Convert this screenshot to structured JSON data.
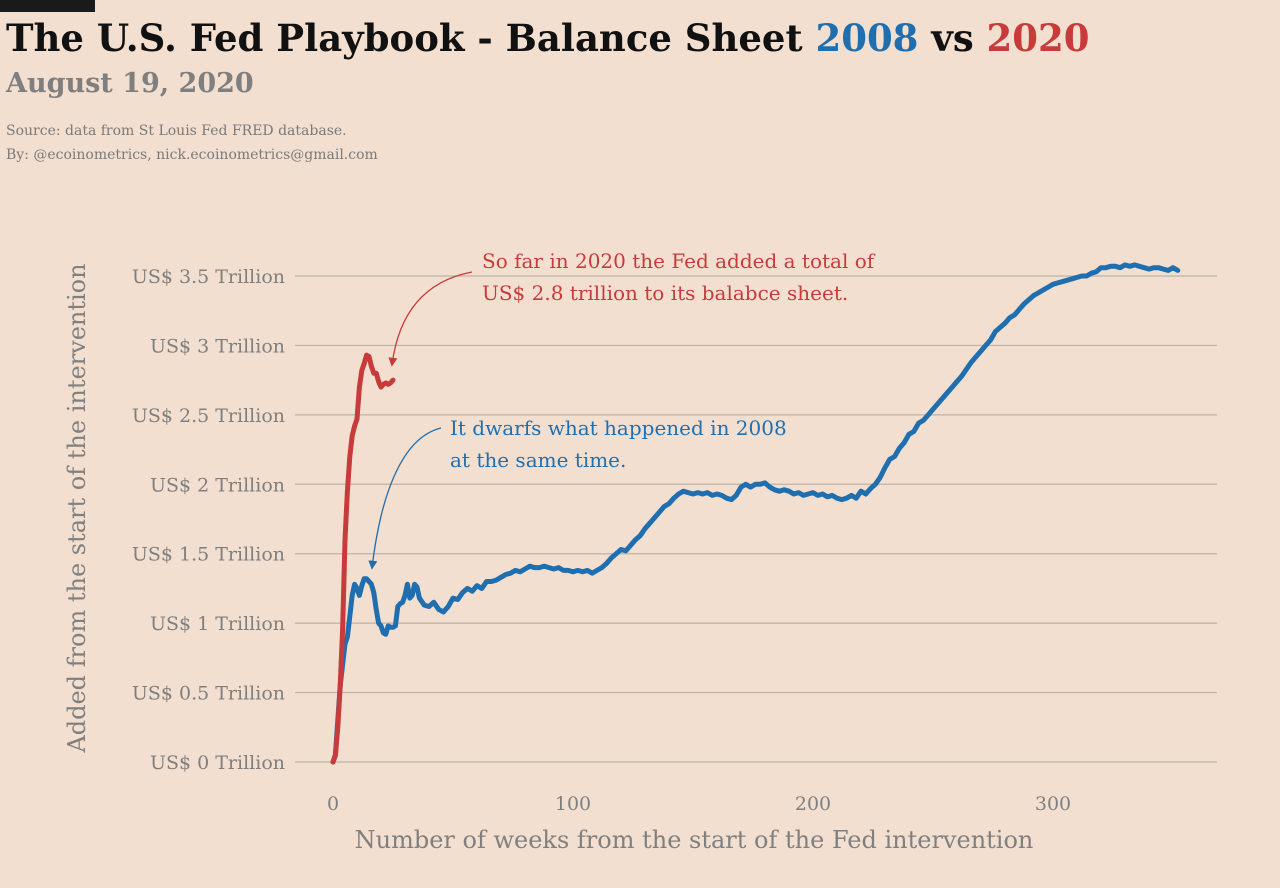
{
  "header": {
    "title_prefix": "The U.S. Fed Playbook - Balance Sheet ",
    "title_2008": "2008",
    "title_vs": " vs ",
    "title_2020": "2020",
    "date": "August 19, 2020",
    "source": "Source: data from  St Louis Fed FRED database.",
    "byline": "By: @ecoinometrics, nick.ecoinometrics@gmail.com"
  },
  "colors": {
    "background": "#f2dfd0",
    "series_2008": "#1f6fb0",
    "series_2020": "#c73b3b",
    "grid": "#bdb3ab"
  },
  "chart_data": {
    "type": "line",
    "title": "The U.S. Fed Playbook - Balance Sheet 2008 vs 2020",
    "xlabel": "Number of weeks from the start of the Fed intervention",
    "ylabel": "Added from the start of the intervention",
    "xlim": [
      -12,
      380
    ],
    "ylim": [
      0,
      3.5
    ],
    "x_ticks": [
      {
        "value": 0,
        "label": "0"
      },
      {
        "value": 100,
        "label": "100"
      },
      {
        "value": 200,
        "label": "200"
      },
      {
        "value": 300,
        "label": "300"
      }
    ],
    "y_ticks": [
      {
        "value": 0,
        "label": "US$ 0 Trillion"
      },
      {
        "value": 0.5,
        "label": "US$ 0.5 Trillion"
      },
      {
        "value": 1,
        "label": "US$ 1 Trillion"
      },
      {
        "value": 1.5,
        "label": "US$ 1.5 Trillion"
      },
      {
        "value": 2,
        "label": "US$ 2 Trillion"
      },
      {
        "value": 2.5,
        "label": "US$ 2.5 Trillion"
      },
      {
        "value": 3,
        "label": "US$ 3 Trillion"
      },
      {
        "value": 3.5,
        "label": "US$ 3.5 Trillion"
      }
    ],
    "grid": true,
    "series": [
      {
        "key": "2008",
        "color": "#1f6fb0",
        "points": [
          [
            0,
            0
          ],
          [
            1,
            0.05
          ],
          [
            2,
            0.3
          ],
          [
            3,
            0.55
          ],
          [
            4,
            0.7
          ],
          [
            5,
            0.85
          ],
          [
            6,
            0.9
          ],
          [
            7,
            1.05
          ],
          [
            8,
            1.2
          ],
          [
            9,
            1.28
          ],
          [
            10,
            1.25
          ],
          [
            11,
            1.2
          ],
          [
            12,
            1.27
          ],
          [
            13,
            1.32
          ],
          [
            14,
            1.32
          ],
          [
            15,
            1.3
          ],
          [
            16,
            1.28
          ],
          [
            17,
            1.22
          ],
          [
            18,
            1.1
          ],
          [
            19,
            1.0
          ],
          [
            20,
            0.98
          ],
          [
            21,
            0.93
          ],
          [
            22,
            0.92
          ],
          [
            23,
            0.98
          ],
          [
            24,
            0.97
          ],
          [
            25,
            0.97
          ],
          [
            26,
            0.98
          ],
          [
            27,
            1.12
          ],
          [
            28,
            1.14
          ],
          [
            29,
            1.15
          ],
          [
            30,
            1.2
          ],
          [
            31,
            1.28
          ],
          [
            32,
            1.18
          ],
          [
            33,
            1.2
          ],
          [
            34,
            1.28
          ],
          [
            35,
            1.26
          ],
          [
            36,
            1.18
          ],
          [
            38,
            1.13
          ],
          [
            40,
            1.12
          ],
          [
            42,
            1.15
          ],
          [
            44,
            1.1
          ],
          [
            46,
            1.08
          ],
          [
            48,
            1.12
          ],
          [
            50,
            1.18
          ],
          [
            52,
            1.17
          ],
          [
            54,
            1.22
          ],
          [
            56,
            1.25
          ],
          [
            58,
            1.23
          ],
          [
            60,
            1.27
          ],
          [
            62,
            1.25
          ],
          [
            64,
            1.3
          ],
          [
            66,
            1.3
          ],
          [
            68,
            1.31
          ],
          [
            70,
            1.33
          ],
          [
            72,
            1.35
          ],
          [
            74,
            1.36
          ],
          [
            76,
            1.38
          ],
          [
            78,
            1.37
          ],
          [
            80,
            1.39
          ],
          [
            82,
            1.41
          ],
          [
            84,
            1.4
          ],
          [
            86,
            1.4
          ],
          [
            88,
            1.41
          ],
          [
            90,
            1.4
          ],
          [
            92,
            1.39
          ],
          [
            94,
            1.4
          ],
          [
            96,
            1.38
          ],
          [
            98,
            1.38
          ],
          [
            100,
            1.37
          ],
          [
            102,
            1.38
          ],
          [
            104,
            1.37
          ],
          [
            106,
            1.38
          ],
          [
            108,
            1.36
          ],
          [
            110,
            1.38
          ],
          [
            112,
            1.4
          ],
          [
            114,
            1.43
          ],
          [
            116,
            1.47
          ],
          [
            118,
            1.5
          ],
          [
            120,
            1.53
          ],
          [
            122,
            1.52
          ],
          [
            124,
            1.56
          ],
          [
            126,
            1.6
          ],
          [
            128,
            1.63
          ],
          [
            130,
            1.68
          ],
          [
            132,
            1.72
          ],
          [
            134,
            1.76
          ],
          [
            136,
            1.8
          ],
          [
            138,
            1.84
          ],
          [
            140,
            1.86
          ],
          [
            142,
            1.9
          ],
          [
            144,
            1.93
          ],
          [
            146,
            1.95
          ],
          [
            148,
            1.94
          ],
          [
            150,
            1.93
          ],
          [
            152,
            1.94
          ],
          [
            154,
            1.93
          ],
          [
            156,
            1.94
          ],
          [
            158,
            1.92
          ],
          [
            160,
            1.93
          ],
          [
            162,
            1.92
          ],
          [
            164,
            1.9
          ],
          [
            166,
            1.89
          ],
          [
            168,
            1.92
          ],
          [
            170,
            1.98
          ],
          [
            172,
            2.0
          ],
          [
            174,
            1.98
          ],
          [
            176,
            2.0
          ],
          [
            178,
            2.0
          ],
          [
            180,
            2.01
          ],
          [
            182,
            1.98
          ],
          [
            184,
            1.96
          ],
          [
            186,
            1.95
          ],
          [
            188,
            1.96
          ],
          [
            190,
            1.95
          ],
          [
            192,
            1.93
          ],
          [
            194,
            1.94
          ],
          [
            196,
            1.92
          ],
          [
            198,
            1.93
          ],
          [
            200,
            1.94
          ],
          [
            202,
            1.92
          ],
          [
            204,
            1.93
          ],
          [
            206,
            1.91
          ],
          [
            208,
            1.92
          ],
          [
            210,
            1.9
          ],
          [
            212,
            1.89
          ],
          [
            214,
            1.9
          ],
          [
            216,
            1.92
          ],
          [
            218,
            1.9
          ],
          [
            220,
            1.95
          ],
          [
            222,
            1.93
          ],
          [
            224,
            1.97
          ],
          [
            226,
            2.0
          ],
          [
            228,
            2.05
          ],
          [
            230,
            2.12
          ],
          [
            232,
            2.18
          ],
          [
            234,
            2.2
          ],
          [
            236,
            2.26
          ],
          [
            238,
            2.3
          ],
          [
            240,
            2.36
          ],
          [
            242,
            2.38
          ],
          [
            244,
            2.44
          ],
          [
            246,
            2.46
          ],
          [
            248,
            2.5
          ],
          [
            250,
            2.54
          ],
          [
            252,
            2.58
          ],
          [
            254,
            2.62
          ],
          [
            256,
            2.66
          ],
          [
            258,
            2.7
          ],
          [
            260,
            2.74
          ],
          [
            262,
            2.78
          ],
          [
            264,
            2.83
          ],
          [
            266,
            2.88
          ],
          [
            268,
            2.92
          ],
          [
            270,
            2.96
          ],
          [
            272,
            3.0
          ],
          [
            274,
            3.04
          ],
          [
            276,
            3.1
          ],
          [
            278,
            3.13
          ],
          [
            280,
            3.16
          ],
          [
            282,
            3.2
          ],
          [
            284,
            3.22
          ],
          [
            286,
            3.26
          ],
          [
            288,
            3.3
          ],
          [
            290,
            3.33
          ],
          [
            292,
            3.36
          ],
          [
            294,
            3.38
          ],
          [
            296,
            3.4
          ],
          [
            298,
            3.42
          ],
          [
            300,
            3.44
          ],
          [
            302,
            3.45
          ],
          [
            304,
            3.46
          ],
          [
            306,
            3.47
          ],
          [
            308,
            3.48
          ],
          [
            310,
            3.49
          ],
          [
            312,
            3.5
          ],
          [
            314,
            3.5
          ],
          [
            316,
            3.52
          ],
          [
            318,
            3.53
          ],
          [
            320,
            3.56
          ],
          [
            322,
            3.56
          ],
          [
            324,
            3.57
          ],
          [
            326,
            3.57
          ],
          [
            328,
            3.56
          ],
          [
            330,
            3.58
          ],
          [
            332,
            3.57
          ],
          [
            334,
            3.58
          ],
          [
            336,
            3.57
          ],
          [
            338,
            3.56
          ],
          [
            340,
            3.55
          ],
          [
            342,
            3.56
          ],
          [
            344,
            3.56
          ],
          [
            346,
            3.55
          ],
          [
            348,
            3.54
          ],
          [
            350,
            3.56
          ],
          [
            352,
            3.54
          ]
        ]
      },
      {
        "key": "2020",
        "color": "#c73b3b",
        "points": [
          [
            0,
            0
          ],
          [
            1,
            0.05
          ],
          [
            2,
            0.25
          ],
          [
            3,
            0.55
          ],
          [
            4,
            0.95
          ],
          [
            5,
            1.6
          ],
          [
            6,
            1.95
          ],
          [
            7,
            2.2
          ],
          [
            8,
            2.35
          ],
          [
            9,
            2.42
          ],
          [
            10,
            2.47
          ],
          [
            11,
            2.7
          ],
          [
            12,
            2.82
          ],
          [
            13,
            2.87
          ],
          [
            14,
            2.93
          ],
          [
            15,
            2.92
          ],
          [
            16,
            2.85
          ],
          [
            17,
            2.8
          ],
          [
            18,
            2.8
          ],
          [
            19,
            2.74
          ],
          [
            20,
            2.7
          ],
          [
            21,
            2.72
          ],
          [
            22,
            2.73
          ],
          [
            23,
            2.72
          ],
          [
            24,
            2.73
          ],
          [
            25,
            2.75
          ]
        ]
      }
    ],
    "annotations": [
      {
        "series": "2020",
        "lines": [
          "So far in 2020 the Fed added a total  of",
          "US$ 2.8 trillion to its balabce sheet."
        ]
      },
      {
        "series": "2008",
        "lines": [
          "It dwarfs what happened in 2008",
          "at the same time."
        ]
      }
    ]
  }
}
